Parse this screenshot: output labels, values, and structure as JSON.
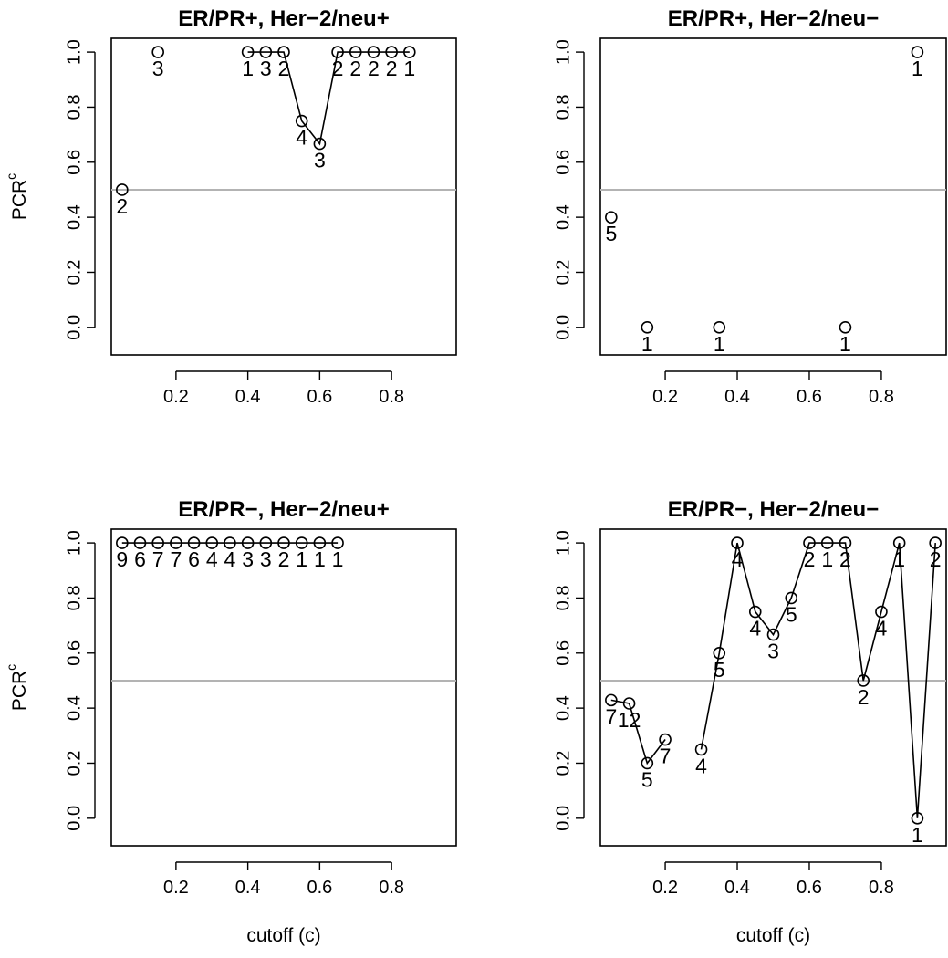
{
  "chart_data": [
    {
      "type": "line",
      "title": "ER/PR+, Her−2/neu+",
      "ylabel": "PCR",
      "ylabel_sup": "c",
      "xlabel": "",
      "xlim": [
        0.02,
        0.98
      ],
      "ylim": [
        -0.1,
        1.05
      ],
      "xticks": [
        "0.2",
        "0.4",
        "0.6",
        "0.8"
      ],
      "yticks": [
        "0.0",
        "0.2",
        "0.4",
        "0.6",
        "0.8",
        "1.0"
      ],
      "reference_line": 0.5,
      "x": [
        0.05,
        0.15,
        0.4,
        0.45,
        0.5,
        0.55,
        0.6,
        0.65,
        0.7,
        0.75,
        0.8,
        0.85
      ],
      "y": [
        0.5,
        1.0,
        1.0,
        1.0,
        1.0,
        0.75,
        0.667,
        1.0,
        1.0,
        1.0,
        1.0,
        1.0
      ],
      "n": [
        "2",
        "3",
        "1",
        "3",
        "2",
        "4",
        "3",
        "2",
        "2",
        "2",
        "2",
        "1"
      ],
      "segments": [
        [
          0.4,
          0.85
        ]
      ]
    },
    {
      "type": "line",
      "title": "ER/PR+, Her−2/neu−",
      "ylabel": "",
      "ylabel_sup": "",
      "xlabel": "",
      "xlim": [
        0.02,
        0.98
      ],
      "ylim": [
        -0.1,
        1.05
      ],
      "xticks": [
        "0.2",
        "0.4",
        "0.6",
        "0.8"
      ],
      "yticks": [
        "0.0",
        "0.2",
        "0.4",
        "0.6",
        "0.8",
        "1.0"
      ],
      "reference_line": 0.5,
      "x": [
        0.05,
        0.15,
        0.35,
        0.7,
        0.9
      ],
      "y": [
        0.4,
        0.0,
        0.0,
        0.0,
        1.0
      ],
      "n": [
        "5",
        "1",
        "1",
        "1",
        "1"
      ],
      "segments": []
    },
    {
      "type": "line",
      "title": "ER/PR−, Her−2/neu+",
      "ylabel": "PCR",
      "ylabel_sup": "c",
      "xlabel": "cutoff (c)",
      "xlim": [
        0.02,
        0.98
      ],
      "ylim": [
        -0.1,
        1.05
      ],
      "xticks": [
        "0.2",
        "0.4",
        "0.6",
        "0.8"
      ],
      "yticks": [
        "0.0",
        "0.2",
        "0.4",
        "0.6",
        "0.8",
        "1.0"
      ],
      "reference_line": 0.5,
      "x": [
        0.05,
        0.1,
        0.15,
        0.2,
        0.25,
        0.3,
        0.35,
        0.4,
        0.45,
        0.5,
        0.55,
        0.6,
        0.65
      ],
      "y": [
        1,
        1,
        1,
        1,
        1,
        1,
        1,
        1,
        1,
        1,
        1,
        1,
        1
      ],
      "n": [
        "9",
        "6",
        "7",
        "7",
        "6",
        "4",
        "4",
        "3",
        "3",
        "2",
        "1",
        "1",
        "1"
      ],
      "segments": [
        [
          0.05,
          0.65
        ]
      ]
    },
    {
      "type": "line",
      "title": "ER/PR−, Her−2/neu−",
      "ylabel": "",
      "ylabel_sup": "",
      "xlabel": "cutoff (c)",
      "xlim": [
        0.02,
        0.98
      ],
      "ylim": [
        -0.1,
        1.05
      ],
      "xticks": [
        "0.2",
        "0.4",
        "0.6",
        "0.8"
      ],
      "yticks": [
        "0.0",
        "0.2",
        "0.4",
        "0.6",
        "0.8",
        "1.0"
      ],
      "reference_line": 0.5,
      "x": [
        0.05,
        0.1,
        0.15,
        0.2,
        0.3,
        0.35,
        0.4,
        0.45,
        0.5,
        0.55,
        0.6,
        0.65,
        0.7,
        0.75,
        0.8,
        0.85,
        0.9,
        0.95
      ],
      "y": [
        0.429,
        0.417,
        0.2,
        0.286,
        0.25,
        0.6,
        1.0,
        0.75,
        0.667,
        0.8,
        1.0,
        1.0,
        1.0,
        0.5,
        0.75,
        1.0,
        0.0,
        1.0
      ],
      "n": [
        "7",
        "12",
        "5",
        "7",
        "4",
        "5",
        "4",
        "4",
        "3",
        "5",
        "2",
        "1",
        "2",
        "2",
        "4",
        "1",
        "1",
        "2"
      ],
      "segments": [
        [
          0.05,
          0.2
        ],
        [
          0.3,
          0.95
        ]
      ]
    }
  ]
}
